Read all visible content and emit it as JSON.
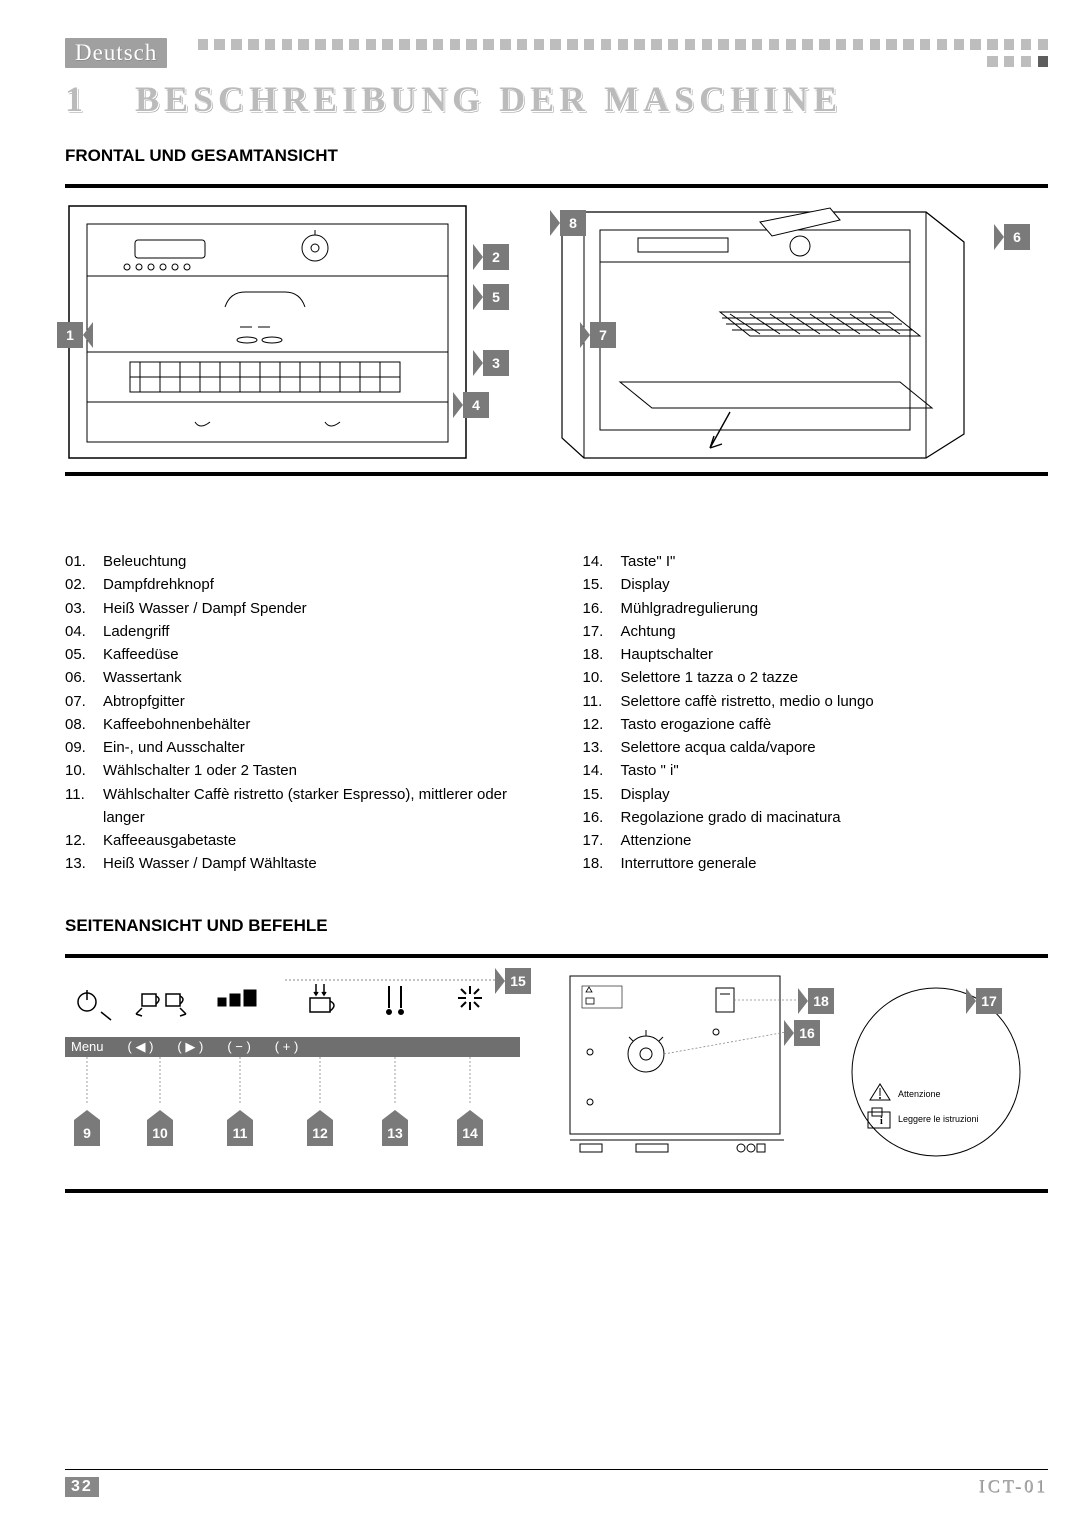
{
  "colors": {
    "square_gray": "#bdbdbd",
    "square_dark": "#5e5e5e",
    "callout_bg": "#7a7a7a",
    "lang_bg": "#a0a0a0",
    "outline_gray": "#bbb"
  },
  "header": {
    "language": "Deutsch",
    "square_count": 55
  },
  "chapter": {
    "number": "1",
    "title": "BESCHREIBUNG DER MASCHINE"
  },
  "section1": {
    "title": "FRONTAL UND GESAMTANSICHT"
  },
  "section2": {
    "title": "SEITENANSICHT UND BEFEHLE"
  },
  "fig1": {
    "callouts": {
      "c1": "1",
      "c2": "2",
      "c3": "3",
      "c4": "4",
      "c5": "5"
    }
  },
  "fig2": {
    "callouts": {
      "c6": "6",
      "c7": "7",
      "c8": "8"
    }
  },
  "fig3": {
    "callouts": {
      "c9": "9",
      "c10": "10",
      "c11": "11",
      "c12": "12",
      "c13": "13",
      "c14": "14",
      "c15": "15"
    },
    "menu_label": "Menu",
    "buttons": {
      "b1": "( ◀ )",
      "b2": "( ▶ )",
      "b3": "( − )",
      "b4": "( + )"
    }
  },
  "fig4": {
    "callouts": {
      "c16": "16",
      "c17": "17",
      "c18": "18"
    },
    "label_attenzione": "Attenzione",
    "label_leggere": "Leggere le istruzioni"
  },
  "list_left": [
    {
      "n": "01.",
      "t": "Beleuchtung"
    },
    {
      "n": "02.",
      "t": "Dampfdrehknopf"
    },
    {
      "n": "03.",
      "t": "Heiß Wasser / Dampf Spender"
    },
    {
      "n": "04.",
      "t": "Ladengriff"
    },
    {
      "n": "05.",
      "t": "Kaffeedüse"
    },
    {
      "n": "06.",
      "t": "Wassertank"
    },
    {
      "n": "07.",
      "t": "Abtropfgitter"
    },
    {
      "n": "08.",
      "t": "Kaffeebohnenbehälter"
    },
    {
      "n": "09.",
      "t": "Ein-, und Ausschalter"
    },
    {
      "n": "10.",
      "t": "Wählschalter 1 oder 2 Tasten"
    },
    {
      "n": "11.",
      "t": "Wählschalter Caffè ristretto (starker Espresso), mittlerer oder langer"
    },
    {
      "n": "12.",
      "t": "Kaffeeausgabetaste"
    },
    {
      "n": "13.",
      "t": "Heiß Wasser / Dampf Wähltaste"
    }
  ],
  "list_right": [
    {
      "n": "14.",
      "t": "Taste\" I\""
    },
    {
      "n": "15.",
      "t": "Display"
    },
    {
      "n": "16.",
      "t": "Mühlgradregulierung"
    },
    {
      "n": "17.",
      "t": "Achtung"
    },
    {
      "n": "18.",
      "t": "Hauptschalter"
    },
    {
      "n": "10.",
      "t": "Selettore 1 tazza o 2 tazze"
    },
    {
      "n": "11.",
      "t": "Selettore caffè ristretto, medio o lungo"
    },
    {
      "n": "12.",
      "t": "Tasto erogazione caffè"
    },
    {
      "n": "13.",
      "t": "Selettore acqua calda/vapore"
    },
    {
      "n": "14.",
      "t": "Tasto \" i\""
    },
    {
      "n": "15.",
      "t": "Display"
    },
    {
      "n": "16.",
      "t": "Regolazione grado di macinatura"
    },
    {
      "n": "17.",
      "t": "Attenzione"
    },
    {
      "n": "18.",
      "t": "Interruttore generale"
    }
  ],
  "footer": {
    "page": "32",
    "docid": "ICT-01"
  }
}
